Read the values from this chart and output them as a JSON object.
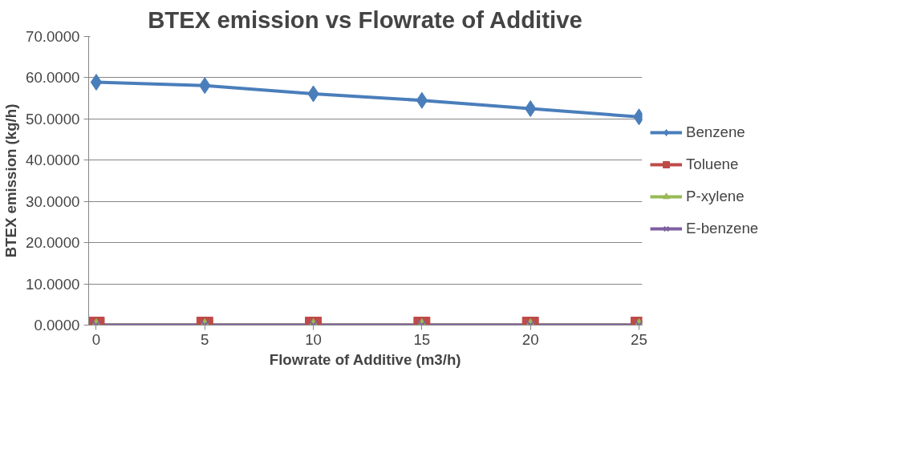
{
  "chart_data": {
    "type": "line",
    "title": "BTEX emission vs Flowrate of Additive",
    "xlabel": "Flowrate of Additive (m3/h)",
    "ylabel": "BTEX emission (kg/h)",
    "categories": [
      "0",
      "5",
      "10",
      "15",
      "20",
      "25"
    ],
    "series": [
      {
        "name": "Benzene",
        "color": "#4a7ebb",
        "marker": "diamond",
        "values": [
          58.9,
          58.1,
          56.1,
          54.5,
          52.5,
          50.5
        ]
      },
      {
        "name": "Toluene",
        "color": "#be4b48",
        "marker": "square",
        "values": [
          0,
          0,
          0,
          0,
          0,
          0
        ]
      },
      {
        "name": "P-xylene",
        "color": "#98b954",
        "marker": "triangle",
        "values": [
          0,
          0,
          0,
          0,
          0,
          0
        ]
      },
      {
        "name": "E-benzene",
        "color": "#7d60a0",
        "marker": "cross",
        "values": [
          0,
          0,
          0,
          0,
          0,
          0
        ]
      }
    ],
    "ylim": [
      0,
      70
    ],
    "yticks": [
      {
        "value": 0,
        "label": "0.0000"
      },
      {
        "value": 10,
        "label": "10.0000"
      },
      {
        "value": 20,
        "label": "20.0000"
      },
      {
        "value": 30,
        "label": "30.0000"
      },
      {
        "value": 40,
        "label": "40.0000"
      },
      {
        "value": 50,
        "label": "50.0000"
      },
      {
        "value": 60,
        "label": "60.0000"
      },
      {
        "value": 70,
        "label": "70.0000"
      }
    ],
    "grid": "y",
    "legend": "right",
    "line_style": "solid"
  }
}
